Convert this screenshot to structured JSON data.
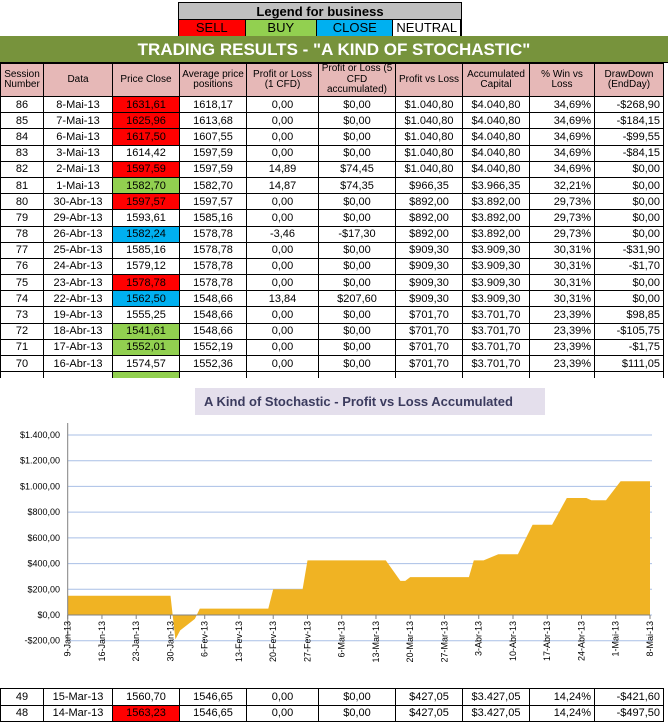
{
  "legend": {
    "title": "Legend for business",
    "items": [
      {
        "label": "SELL",
        "color": "#ff0000"
      },
      {
        "label": "BUY",
        "color": "#92d050"
      },
      {
        "label": "CLOSE",
        "color": "#00b0f0"
      },
      {
        "label": "NEUTRAL",
        "color": "#ffffff"
      }
    ]
  },
  "title": "TRADING RESULTS - \"A KIND OF STOCHASTIC\"",
  "columns": [
    "Session Number",
    "Data",
    "Price Close",
    "Average price positions",
    "Profit or Loss (1 CFD)",
    "Profit or Loss (5 CFD accumulated)",
    "Profit vs Loss",
    "Accumulated Capital",
    "% Win vs Loss",
    "DrawDown (EndDay)"
  ],
  "rows": [
    [
      "86",
      "8-Mai-13",
      "1631,61",
      "1618,17",
      "0,00",
      "$0,00",
      "$1.040,80",
      "$4.040,80",
      "34,69%",
      "-$268,90",
      "sell"
    ],
    [
      "85",
      "7-Mai-13",
      "1625,96",
      "1613,68",
      "0,00",
      "$0,00",
      "$1.040,80",
      "$4.040,80",
      "34,69%",
      "-$184,15",
      "sell"
    ],
    [
      "84",
      "6-Mai-13",
      "1617,50",
      "1607,55",
      "0,00",
      "$0,00",
      "$1.040,80",
      "$4.040,80",
      "34,69%",
      "-$99,55",
      "sell"
    ],
    [
      "83",
      "3-Mai-13",
      "1614,42",
      "1597,59",
      "0,00",
      "$0,00",
      "$1.040,80",
      "$4.040,80",
      "34,69%",
      "-$84,15",
      ""
    ],
    [
      "82",
      "2-Mai-13",
      "1597,59",
      "1597,59",
      "14,89",
      "$74,45",
      "$1.040,80",
      "$4.040,80",
      "34,69%",
      "$0,00",
      "sell"
    ],
    [
      "81",
      "1-Mai-13",
      "1582,70",
      "1582,70",
      "14,87",
      "$74,35",
      "$966,35",
      "$3.966,35",
      "32,21%",
      "$0,00",
      "buy"
    ],
    [
      "80",
      "30-Abr-13",
      "1597,57",
      "1597,57",
      "0,00",
      "$0,00",
      "$892,00",
      "$3.892,00",
      "29,73%",
      "$0,00",
      "sell"
    ],
    [
      "79",
      "29-Abr-13",
      "1593,61",
      "1585,16",
      "0,00",
      "$0,00",
      "$892,00",
      "$3.892,00",
      "29,73%",
      "$0,00",
      ""
    ],
    [
      "78",
      "26-Abr-13",
      "1582,24",
      "1578,78",
      "-3,46",
      "-$17,30",
      "$892,00",
      "$3.892,00",
      "29,73%",
      "$0,00",
      "close"
    ],
    [
      "77",
      "25-Abr-13",
      "1585,16",
      "1578,78",
      "0,00",
      "$0,00",
      "$909,30",
      "$3.909,30",
      "30,31%",
      "-$31,90",
      ""
    ],
    [
      "76",
      "24-Abr-13",
      "1579,12",
      "1578,78",
      "0,00",
      "$0,00",
      "$909,30",
      "$3.909,30",
      "30,31%",
      "-$1,70",
      ""
    ],
    [
      "75",
      "23-Abr-13",
      "1578,78",
      "1578,78",
      "0,00",
      "$0,00",
      "$909,30",
      "$3.909,30",
      "30,31%",
      "$0,00",
      "sell"
    ],
    [
      "74",
      "22-Abr-13",
      "1562,50",
      "1548,66",
      "13,84",
      "$207,60",
      "$909,30",
      "$3.909,30",
      "30,31%",
      "$0,00",
      "close"
    ],
    [
      "73",
      "19-Abr-13",
      "1555,25",
      "1548,66",
      "0,00",
      "$0,00",
      "$701,70",
      "$3.701,70",
      "23,39%",
      "$98,85",
      ""
    ],
    [
      "72",
      "18-Abr-13",
      "1541,61",
      "1548,66",
      "0,00",
      "$0,00",
      "$701,70",
      "$3.701,70",
      "23,39%",
      "-$105,75",
      "buy"
    ],
    [
      "71",
      "17-Abr-13",
      "1552,01",
      "1552,19",
      "0,00",
      "$0,00",
      "$701,70",
      "$3.701,70",
      "23,39%",
      "-$1,75",
      "buy"
    ],
    [
      "70",
      "16-Abr-13",
      "1574,57",
      "1552,36",
      "0,00",
      "$0,00",
      "$701,70",
      "$3.701,70",
      "23,39%",
      "$111,05",
      ""
    ]
  ],
  "bottom_rows": [
    [
      "49",
      "15-Mar-13",
      "1560,70",
      "1546,65",
      "0,00",
      "$0,00",
      "$427,05",
      "$3.427,05",
      "14,24%",
      "-$421,60",
      ""
    ],
    [
      "48",
      "14-Mar-13",
      "1563,23",
      "1546,65",
      "0,00",
      "$0,00",
      "$427,05",
      "$3.427,05",
      "14,24%",
      "-$497,50",
      "sell"
    ]
  ],
  "chart_data": {
    "type": "area",
    "title": "A Kind of Stochastic - Profit vs Loss Accumulated",
    "xlabel": "",
    "ylabel": "",
    "ylim": [
      -200,
      1400
    ],
    "yticks": [
      "-$200,00",
      "$0,00",
      "$200,00",
      "$400,00",
      "$600,00",
      "$800,00",
      "$1.000,00",
      "$1.200,00",
      "$1.400,00"
    ],
    "xticks": [
      "9-Jan-13",
      "16-Jan-13",
      "23-Jan-13",
      "30-Jan-13",
      "6-Fev-13",
      "13-Fev-13",
      "20-Fev-13",
      "27-Fev-13",
      "6-Mar-13",
      "13-Mar-13",
      "20-Mar-13",
      "27-Mar-13",
      "3-Abr-13",
      "10-Abr-13",
      "17-Abr-13",
      "24-Abr-13",
      "1-Mai-13",
      "8-Mai-13"
    ],
    "x_unit": "days since 9-Jan-13",
    "x": [
      0,
      21,
      22,
      23,
      26,
      27,
      41,
      42,
      48,
      49,
      65,
      68,
      69,
      70,
      82,
      83,
      85,
      88,
      92,
      95,
      99,
      102,
      106,
      107,
      110,
      113,
      119
    ],
    "values": [
      150,
      150,
      -190,
      -120,
      -30,
      50,
      50,
      200,
      200,
      425,
      425,
      265,
      265,
      295,
      295,
      425,
      425,
      472,
      472,
      702,
      702,
      910,
      910,
      892,
      892,
      1040,
      1040
    ],
    "color": "#f0b323",
    "grid": true,
    "legend": "none"
  }
}
